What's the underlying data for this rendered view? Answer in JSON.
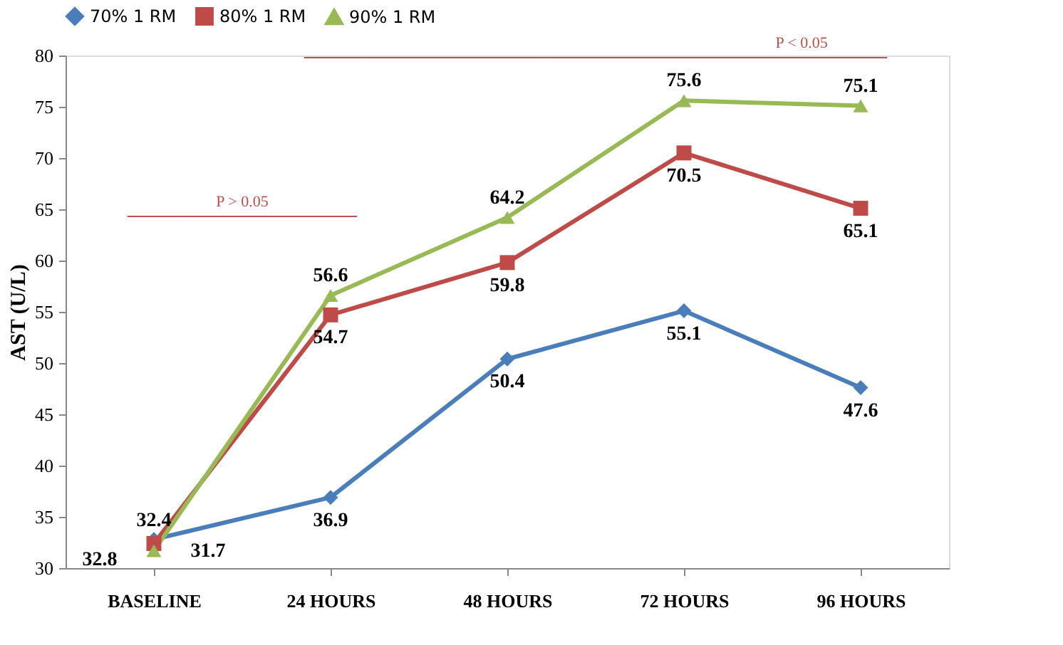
{
  "chart_data": {
    "type": "line",
    "categories": [
      "BASELINE",
      "24 HOURS",
      "48 HOURS",
      "72 HOURS",
      "96 HOURS"
    ],
    "ylabel": "AST  (U/L)",
    "series": [
      {
        "name": "70% 1 RM",
        "color": "#4a7ebb",
        "marker": "diamond",
        "values": [
          32.8,
          36.9,
          50.4,
          55.1,
          47.6
        ]
      },
      {
        "name": "80% 1 RM",
        "color": "#be4b48",
        "marker": "square",
        "values": [
          32.4,
          54.7,
          59.8,
          70.5,
          65.1
        ]
      },
      {
        "name": "90% 1 RM",
        "color": "#98b954",
        "marker": "triangle",
        "values": [
          31.7,
          56.6,
          64.2,
          75.6,
          75.1
        ]
      }
    ],
    "ylim": [
      30,
      80
    ],
    "yticks": [
      30,
      35,
      40,
      45,
      50,
      55,
      60,
      65,
      70,
      75,
      80
    ],
    "grid": false,
    "legend": "top",
    "data_labels": true,
    "ref_lines": [
      {
        "axis": "y",
        "value": 64.3,
        "label": "P > 0.05",
        "color": "#c0504d"
      },
      {
        "axis": "y",
        "value": 79.8,
        "label": "P < 0.05",
        "color": "#c0504d"
      }
    ]
  }
}
